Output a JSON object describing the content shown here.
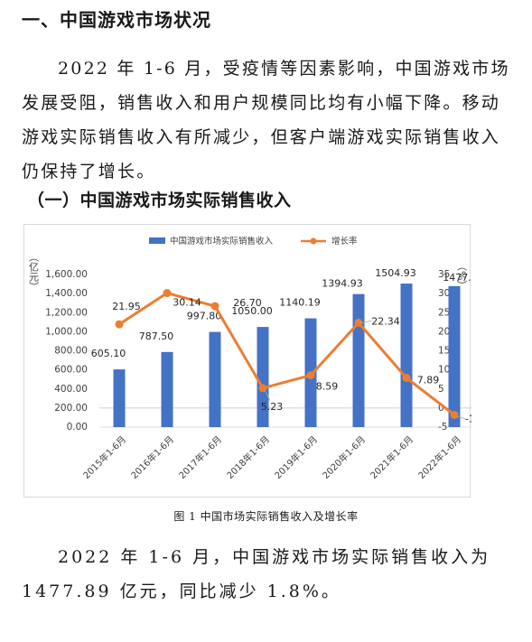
{
  "heading1": "一、中国游戏市场状况",
  "paragraph1": "2022 年 1-6 月，受疫情等因素影响，中国游戏市场发展受阻，销售收入和用户规模同比均有小幅下降。移动游戏实际销售收入有所减少，但客户端游戏实际销售收入仍保持了增长。",
  "heading2": "（一）中国游戏市场实际销售收入",
  "caption": "图 1  中国市场实际销售收入及增长率",
  "paragraph2": "2022 年 1-6 月，中国游戏市场实际销售收入为 1477.89 亿元，同比减少 1.8%。",
  "colors": {
    "bar": "#4472c4",
    "line": "#ed7d31",
    "text": "#404040"
  },
  "chart_data": {
    "type": "bar+line",
    "categories": [
      "2015年1-6月",
      "2016年1-6月",
      "2017年1-6月",
      "2018年1-6月",
      "2019年1-6月",
      "2020年1-6月",
      "2021年1-6月",
      "2022年1-6月"
    ],
    "series": [
      {
        "name": "中国游戏市场实际销售收入",
        "type": "bar",
        "axis": "left",
        "values": [
          605.1,
          787.5,
          997.8,
          1050.0,
          1140.19,
          1394.93,
          1504.93,
          1477.89
        ],
        "labels": [
          "605.10",
          "787.50",
          "997.80",
          "1050.00",
          "1140.19",
          "1394.93",
          "1504.93",
          "1477.89"
        ]
      },
      {
        "name": "增长率",
        "type": "line",
        "axis": "right",
        "values": [
          21.95,
          30.14,
          26.7,
          5.23,
          8.59,
          22.34,
          7.89,
          -1.8
        ],
        "labels": [
          "21.95",
          "30.14",
          "26.70",
          "5.23",
          "8.59",
          "22.34",
          "7.89",
          "-1.80"
        ]
      }
    ],
    "left_axis": {
      "label": "（亿元）",
      "ticks": [
        "0.00",
        "200.00",
        "400.00",
        "600.00",
        "800.00",
        "1,000.00",
        "1,200.00",
        "1,400.00",
        "1,600.00"
      ],
      "min": 0,
      "max": 1600
    },
    "right_axis": {
      "label": "（%）",
      "ticks": [
        "-5",
        "0",
        "5",
        "10",
        "15",
        "20",
        "25",
        "30",
        "35"
      ],
      "min": -5,
      "max": 35
    },
    "legend_position": "top-center",
    "grid": false
  }
}
